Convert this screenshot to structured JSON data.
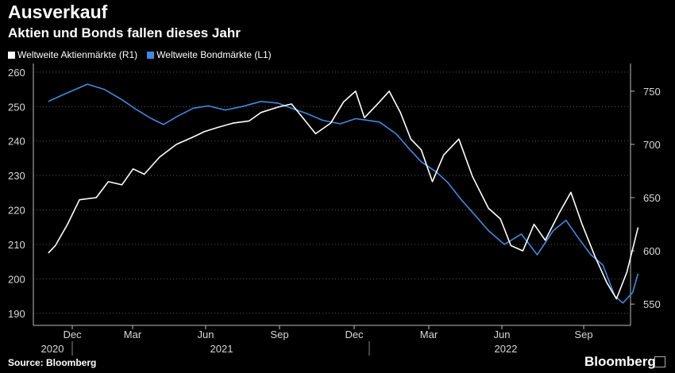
{
  "header": {
    "title": "Ausverkauf",
    "subtitle": "Aktien und Bonds fallen dieses Jahr"
  },
  "legend": {
    "items": [
      {
        "label": "Weltweite Aktienmärkte (R1)",
        "color": "#ffffff"
      },
      {
        "label": "Weltweite Bondmärkte (L1)",
        "color": "#3f8ae0"
      }
    ]
  },
  "footer": {
    "source": "Source: Bloomberg",
    "brand": "Bloomberg"
  },
  "chart_data": {
    "type": "line",
    "x_ticks": [
      "Dec",
      "Mar",
      "Jun",
      "Sep",
      "Dec",
      "Mar",
      "Jun",
      "Sep"
    ],
    "x_years": [
      "2020",
      "2021",
      "2022"
    ],
    "y_left": {
      "ticks": [
        190,
        200,
        210,
        220,
        230,
        240,
        250,
        260
      ],
      "lim": [
        186.5,
        262.5
      ]
    },
    "y_right": {
      "ticks": [
        550,
        600,
        650,
        700,
        750
      ],
      "lim": [
        530,
        776
      ]
    },
    "grid": true,
    "legend_position": "top-left",
    "series": [
      {
        "name": "Weltweite Bondmärkte (L1)",
        "axis": "left",
        "color": "#3f8ae0",
        "dates": [
          "2020-11-01",
          "2020-11-20",
          "2020-12-05",
          "2020-12-20",
          "2021-01-10",
          "2021-02-01",
          "2021-02-20",
          "2021-03-10",
          "2021-03-25",
          "2021-04-10",
          "2021-05-01",
          "2021-05-20",
          "2021-06-10",
          "2021-07-01",
          "2021-07-25",
          "2021-08-15",
          "2021-09-01",
          "2021-09-20",
          "2021-10-10",
          "2021-11-01",
          "2021-11-20",
          "2021-12-05",
          "2021-12-20",
          "2022-01-10",
          "2022-01-25",
          "2022-02-10",
          "2022-03-01",
          "2022-03-15",
          "2022-04-01",
          "2022-04-20",
          "2022-05-05",
          "2022-05-25",
          "2022-06-15",
          "2022-07-05",
          "2022-07-25",
          "2022-08-10",
          "2022-08-25",
          "2022-09-10",
          "2022-09-25",
          "2022-10-10",
          "2022-10-20",
          "2022-11-01",
          "2022-11-08"
        ],
        "values": [
          251.5,
          253.5,
          255.0,
          256.5,
          255.0,
          252.0,
          249.0,
          246.5,
          244.8,
          247.0,
          249.5,
          250.2,
          249.0,
          250.0,
          251.5,
          251.0,
          249.5,
          248.0,
          246.0,
          245.0,
          246.5,
          246.0,
          245.5,
          242.0,
          238.0,
          234.0,
          231.0,
          228.0,
          223.0,
          218.0,
          214.0,
          210.0,
          213.0,
          207.0,
          214.0,
          217.0,
          212.0,
          207.0,
          204.0,
          195.0,
          193.0,
          196.0,
          201.5
        ]
      },
      {
        "name": "Weltweite Aktienmärkte (R1)",
        "axis": "right",
        "color": "#ffffff",
        "dates": [
          "2020-11-01",
          "2020-11-10",
          "2020-11-25",
          "2020-12-10",
          "2020-12-31",
          "2021-01-15",
          "2021-02-01",
          "2021-02-15",
          "2021-03-01",
          "2021-03-20",
          "2021-04-10",
          "2021-05-01",
          "2021-05-15",
          "2021-06-01",
          "2021-06-20",
          "2021-07-10",
          "2021-07-25",
          "2021-08-15",
          "2021-09-01",
          "2021-09-15",
          "2021-10-01",
          "2021-10-20",
          "2021-11-05",
          "2021-11-20",
          "2021-12-01",
          "2021-12-20",
          "2022-01-01",
          "2022-01-15",
          "2022-01-28",
          "2022-02-10",
          "2022-02-24",
          "2022-03-10",
          "2022-03-29",
          "2022-04-15",
          "2022-05-05",
          "2022-05-20",
          "2022-06-02",
          "2022-06-17",
          "2022-07-01",
          "2022-07-15",
          "2022-08-01",
          "2022-08-16",
          "2022-08-30",
          "2022-09-15",
          "2022-09-30",
          "2022-10-12",
          "2022-10-25",
          "2022-11-08"
        ],
        "values": [
          598,
          605,
          625,
          648,
          650,
          665,
          662,
          677,
          672,
          688,
          700,
          707,
          712,
          716,
          720,
          722,
          730,
          735,
          738,
          725,
          710,
          720,
          740,
          750,
          725,
          740,
          750,
          730,
          705,
          695,
          665,
          690,
          705,
          670,
          640,
          630,
          605,
          600,
          625,
          610,
          635,
          655,
          625,
          595,
          570,
          555,
          580,
          622
        ]
      }
    ]
  }
}
